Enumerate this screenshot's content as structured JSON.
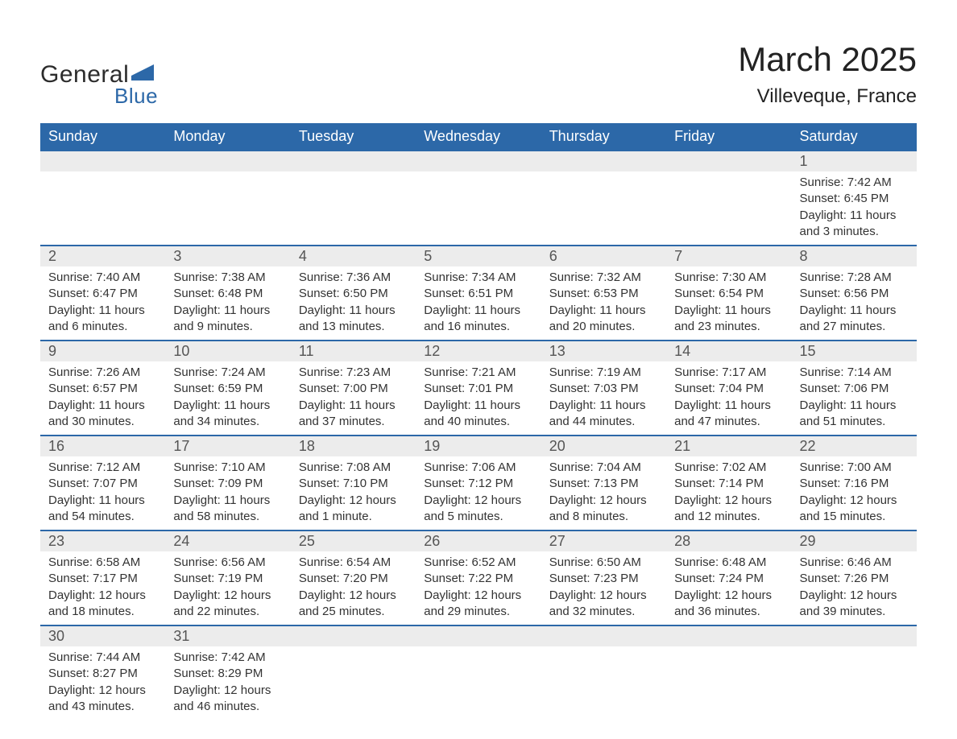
{
  "brand": {
    "text1": "General",
    "text2": "Blue",
    "flag_color": "#2c68a8"
  },
  "title": {
    "month": "March 2025",
    "location": "Villeveque, France"
  },
  "colors": {
    "header_bg": "#2c68a8",
    "header_text": "#ffffff",
    "daynum_bg": "#ececec",
    "row_border": "#2c68a8",
    "body_text": "#333333",
    "title_text": "#222222"
  },
  "typography": {
    "month_fontsize": 42,
    "location_fontsize": 24,
    "weekday_fontsize": 18,
    "daynum_fontsize": 18,
    "detail_fontsize": 15,
    "font_family": "Arial"
  },
  "weekdays": [
    "Sunday",
    "Monday",
    "Tuesday",
    "Wednesday",
    "Thursday",
    "Friday",
    "Saturday"
  ],
  "weeks": [
    {
      "nums": [
        "",
        "",
        "",
        "",
        "",
        "",
        "1"
      ],
      "cells": [
        null,
        null,
        null,
        null,
        null,
        null,
        {
          "sunrise": "Sunrise: 7:42 AM",
          "sunset": "Sunset: 6:45 PM",
          "day1": "Daylight: 11 hours",
          "day2": "and 3 minutes."
        }
      ]
    },
    {
      "nums": [
        "2",
        "3",
        "4",
        "5",
        "6",
        "7",
        "8"
      ],
      "cells": [
        {
          "sunrise": "Sunrise: 7:40 AM",
          "sunset": "Sunset: 6:47 PM",
          "day1": "Daylight: 11 hours",
          "day2": "and 6 minutes."
        },
        {
          "sunrise": "Sunrise: 7:38 AM",
          "sunset": "Sunset: 6:48 PM",
          "day1": "Daylight: 11 hours",
          "day2": "and 9 minutes."
        },
        {
          "sunrise": "Sunrise: 7:36 AM",
          "sunset": "Sunset: 6:50 PM",
          "day1": "Daylight: 11 hours",
          "day2": "and 13 minutes."
        },
        {
          "sunrise": "Sunrise: 7:34 AM",
          "sunset": "Sunset: 6:51 PM",
          "day1": "Daylight: 11 hours",
          "day2": "and 16 minutes."
        },
        {
          "sunrise": "Sunrise: 7:32 AM",
          "sunset": "Sunset: 6:53 PM",
          "day1": "Daylight: 11 hours",
          "day2": "and 20 minutes."
        },
        {
          "sunrise": "Sunrise: 7:30 AM",
          "sunset": "Sunset: 6:54 PM",
          "day1": "Daylight: 11 hours",
          "day2": "and 23 minutes."
        },
        {
          "sunrise": "Sunrise: 7:28 AM",
          "sunset": "Sunset: 6:56 PM",
          "day1": "Daylight: 11 hours",
          "day2": "and 27 minutes."
        }
      ]
    },
    {
      "nums": [
        "9",
        "10",
        "11",
        "12",
        "13",
        "14",
        "15"
      ],
      "cells": [
        {
          "sunrise": "Sunrise: 7:26 AM",
          "sunset": "Sunset: 6:57 PM",
          "day1": "Daylight: 11 hours",
          "day2": "and 30 minutes."
        },
        {
          "sunrise": "Sunrise: 7:24 AM",
          "sunset": "Sunset: 6:59 PM",
          "day1": "Daylight: 11 hours",
          "day2": "and 34 minutes."
        },
        {
          "sunrise": "Sunrise: 7:23 AM",
          "sunset": "Sunset: 7:00 PM",
          "day1": "Daylight: 11 hours",
          "day2": "and 37 minutes."
        },
        {
          "sunrise": "Sunrise: 7:21 AM",
          "sunset": "Sunset: 7:01 PM",
          "day1": "Daylight: 11 hours",
          "day2": "and 40 minutes."
        },
        {
          "sunrise": "Sunrise: 7:19 AM",
          "sunset": "Sunset: 7:03 PM",
          "day1": "Daylight: 11 hours",
          "day2": "and 44 minutes."
        },
        {
          "sunrise": "Sunrise: 7:17 AM",
          "sunset": "Sunset: 7:04 PM",
          "day1": "Daylight: 11 hours",
          "day2": "and 47 minutes."
        },
        {
          "sunrise": "Sunrise: 7:14 AM",
          "sunset": "Sunset: 7:06 PM",
          "day1": "Daylight: 11 hours",
          "day2": "and 51 minutes."
        }
      ]
    },
    {
      "nums": [
        "16",
        "17",
        "18",
        "19",
        "20",
        "21",
        "22"
      ],
      "cells": [
        {
          "sunrise": "Sunrise: 7:12 AM",
          "sunset": "Sunset: 7:07 PM",
          "day1": "Daylight: 11 hours",
          "day2": "and 54 minutes."
        },
        {
          "sunrise": "Sunrise: 7:10 AM",
          "sunset": "Sunset: 7:09 PM",
          "day1": "Daylight: 11 hours",
          "day2": "and 58 minutes."
        },
        {
          "sunrise": "Sunrise: 7:08 AM",
          "sunset": "Sunset: 7:10 PM",
          "day1": "Daylight: 12 hours",
          "day2": "and 1 minute."
        },
        {
          "sunrise": "Sunrise: 7:06 AM",
          "sunset": "Sunset: 7:12 PM",
          "day1": "Daylight: 12 hours",
          "day2": "and 5 minutes."
        },
        {
          "sunrise": "Sunrise: 7:04 AM",
          "sunset": "Sunset: 7:13 PM",
          "day1": "Daylight: 12 hours",
          "day2": "and 8 minutes."
        },
        {
          "sunrise": "Sunrise: 7:02 AM",
          "sunset": "Sunset: 7:14 PM",
          "day1": "Daylight: 12 hours",
          "day2": "and 12 minutes."
        },
        {
          "sunrise": "Sunrise: 7:00 AM",
          "sunset": "Sunset: 7:16 PM",
          "day1": "Daylight: 12 hours",
          "day2": "and 15 minutes."
        }
      ]
    },
    {
      "nums": [
        "23",
        "24",
        "25",
        "26",
        "27",
        "28",
        "29"
      ],
      "cells": [
        {
          "sunrise": "Sunrise: 6:58 AM",
          "sunset": "Sunset: 7:17 PM",
          "day1": "Daylight: 12 hours",
          "day2": "and 18 minutes."
        },
        {
          "sunrise": "Sunrise: 6:56 AM",
          "sunset": "Sunset: 7:19 PM",
          "day1": "Daylight: 12 hours",
          "day2": "and 22 minutes."
        },
        {
          "sunrise": "Sunrise: 6:54 AM",
          "sunset": "Sunset: 7:20 PM",
          "day1": "Daylight: 12 hours",
          "day2": "and 25 minutes."
        },
        {
          "sunrise": "Sunrise: 6:52 AM",
          "sunset": "Sunset: 7:22 PM",
          "day1": "Daylight: 12 hours",
          "day2": "and 29 minutes."
        },
        {
          "sunrise": "Sunrise: 6:50 AM",
          "sunset": "Sunset: 7:23 PM",
          "day1": "Daylight: 12 hours",
          "day2": "and 32 minutes."
        },
        {
          "sunrise": "Sunrise: 6:48 AM",
          "sunset": "Sunset: 7:24 PM",
          "day1": "Daylight: 12 hours",
          "day2": "and 36 minutes."
        },
        {
          "sunrise": "Sunrise: 6:46 AM",
          "sunset": "Sunset: 7:26 PM",
          "day1": "Daylight: 12 hours",
          "day2": "and 39 minutes."
        }
      ]
    },
    {
      "nums": [
        "30",
        "31",
        "",
        "",
        "",
        "",
        ""
      ],
      "cells": [
        {
          "sunrise": "Sunrise: 7:44 AM",
          "sunset": "Sunset: 8:27 PM",
          "day1": "Daylight: 12 hours",
          "day2": "and 43 minutes."
        },
        {
          "sunrise": "Sunrise: 7:42 AM",
          "sunset": "Sunset: 8:29 PM",
          "day1": "Daylight: 12 hours",
          "day2": "and 46 minutes."
        },
        null,
        null,
        null,
        null,
        null
      ]
    }
  ]
}
